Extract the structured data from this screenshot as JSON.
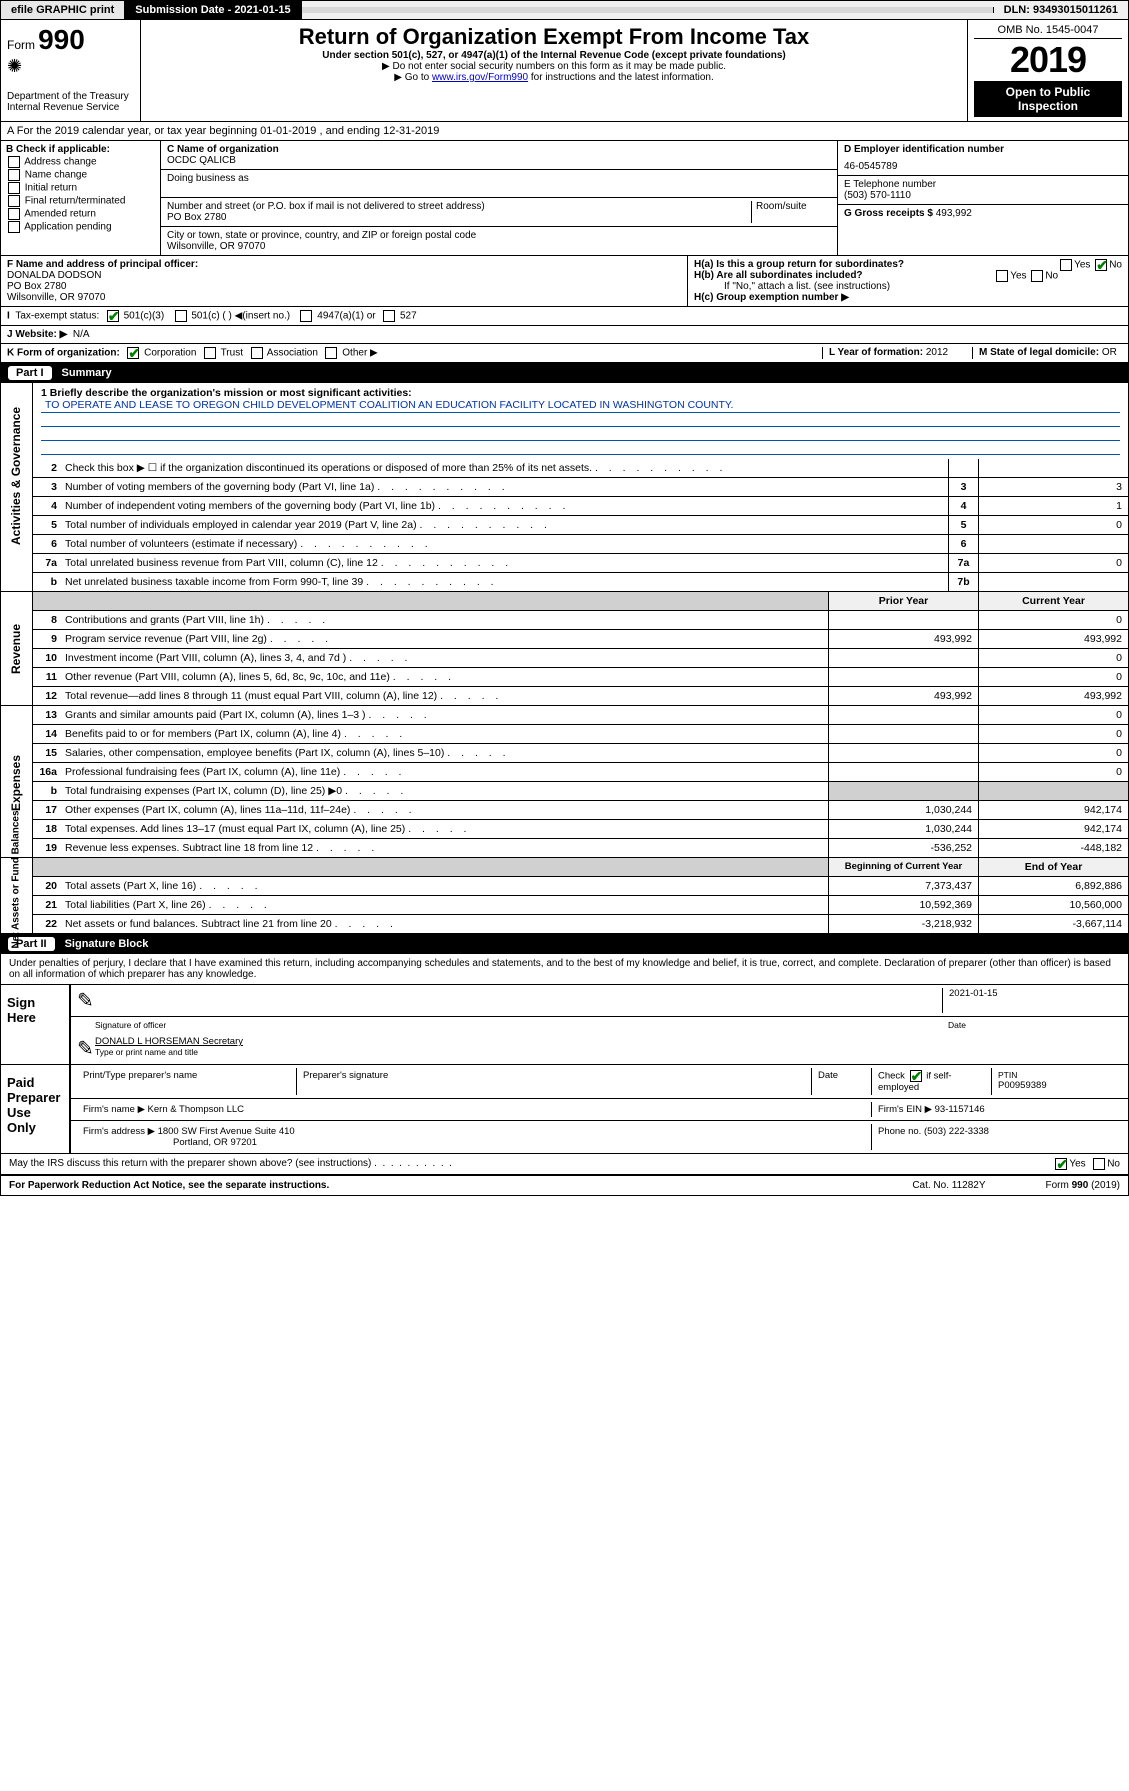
{
  "topbar": {
    "efile": "efile GRAPHIC print",
    "subdate_label": "Submission Date - 2021-01-15",
    "dln": "DLN: 93493015011261"
  },
  "header": {
    "form_prefix": "Form",
    "form_num": "990",
    "title": "Return of Organization Exempt From Income Tax",
    "sub1": "Under section 501(c), 527, or 4947(a)(1) of the Internal Revenue Code (except private foundations)",
    "sub2": "▶ Do not enter social security numbers on this form as it may be made public.",
    "sub3_pre": "▶ Go to ",
    "sub3_link": "www.irs.gov/Form990",
    "sub3_post": " for instructions and the latest information.",
    "dept": "Department of the Treasury\nInternal Revenue Service",
    "omb": "OMB No. 1545-0047",
    "year": "2019",
    "inspection": "Open to Public Inspection"
  },
  "line_a": "A For the 2019 calendar year, or tax year beginning 01-01-2019    , and ending 12-31-2019",
  "col_b": {
    "header": "B Check if applicable:",
    "opts": [
      "Address change",
      "Name change",
      "Initial return",
      "Final return/terminated",
      "Amended return",
      "Application pending"
    ]
  },
  "col_c": {
    "name_label": "C Name of organization",
    "name": "OCDC QALICB",
    "dba_label": "Doing business as",
    "addr_label": "Number and street (or P.O. box if mail is not delivered to street address)",
    "room_label": "Room/suite",
    "addr": "PO Box 2780",
    "city_label": "City or town, state or province, country, and ZIP or foreign postal code",
    "city": "Wilsonville, OR  97070"
  },
  "col_de": {
    "ein_label": "D Employer identification number",
    "ein": "46-0545789",
    "phone_label": "E Telephone number",
    "phone": "(503) 570-1110",
    "gross_label": "G Gross receipts $ ",
    "gross": "493,992"
  },
  "row_f": {
    "label": "F  Name and address of principal officer:",
    "name": "DONALDA DODSON",
    "addr1": "PO Box 2780",
    "addr2": "Wilsonville, OR  97070"
  },
  "row_h": {
    "ha": "H(a)  Is this a group return for subordinates?",
    "hb": "H(b)  Are all subordinates included?",
    "hb_note": "If \"No,\" attach a list. (see instructions)",
    "hc": "H(c)  Group exemption number ▶"
  },
  "row_i": {
    "label": "Tax-exempt status:",
    "o1": "501(c)(3)",
    "o2": "501(c) (   ) ◀(insert no.)",
    "o3": "4947(a)(1) or",
    "o4": "527"
  },
  "row_j": {
    "label": "J  Website: ▶",
    "val": "N/A"
  },
  "row_k": {
    "label": "K Form of organization:",
    "o1": "Corporation",
    "o2": "Trust",
    "o3": "Association",
    "o4": "Other ▶"
  },
  "row_l": {
    "label": "L Year of formation: ",
    "val": "2012"
  },
  "row_m": {
    "label": "M State of legal domicile: ",
    "val": "OR"
  },
  "part1": {
    "num": "Part I",
    "title": "Summary",
    "sidetabs": [
      "Activities & Governance",
      "Revenue",
      "Expenses",
      "Net Assets or Fund Balances"
    ],
    "q1_label": "1  Briefly describe the organization's mission or most significant activities:",
    "q1_text": "TO OPERATE AND LEASE TO OREGON CHILD DEVELOPMENT COALITION AN EDUCATION FACILITY LOCATED IN WASHINGTON COUNTY.",
    "rows_gov": [
      {
        "n": "2",
        "d": "Check this box ▶ ☐  if the organization discontinued its operations or disposed of more than 25% of its net assets.",
        "box": "",
        "v": ""
      },
      {
        "n": "3",
        "d": "Number of voting members of the governing body (Part VI, line 1a)",
        "box": "3",
        "v": "3"
      },
      {
        "n": "4",
        "d": "Number of independent voting members of the governing body (Part VI, line 1b)",
        "box": "4",
        "v": "1"
      },
      {
        "n": "5",
        "d": "Total number of individuals employed in calendar year 2019 (Part V, line 2a)",
        "box": "5",
        "v": "0"
      },
      {
        "n": "6",
        "d": "Total number of volunteers (estimate if necessary)",
        "box": "6",
        "v": ""
      },
      {
        "n": "7a",
        "d": "Total unrelated business revenue from Part VIII, column (C), line 12",
        "box": "7a",
        "v": "0"
      },
      {
        "n": "b",
        "d": "Net unrelated business taxable income from Form 990-T, line 39",
        "box": "7b",
        "v": ""
      }
    ],
    "hdr_prior": "Prior Year",
    "hdr_curr": "Current Year",
    "rows_rev": [
      {
        "n": "8",
        "d": "Contributions and grants (Part VIII, line 1h)",
        "p": "",
        "c": "0"
      },
      {
        "n": "9",
        "d": "Program service revenue (Part VIII, line 2g)",
        "p": "493,992",
        "c": "493,992"
      },
      {
        "n": "10",
        "d": "Investment income (Part VIII, column (A), lines 3, 4, and 7d )",
        "p": "",
        "c": "0"
      },
      {
        "n": "11",
        "d": "Other revenue (Part VIII, column (A), lines 5, 6d, 8c, 9c, 10c, and 11e)",
        "p": "",
        "c": "0"
      },
      {
        "n": "12",
        "d": "Total revenue—add lines 8 through 11 (must equal Part VIII, column (A), line 12)",
        "p": "493,992",
        "c": "493,992"
      }
    ],
    "rows_exp": [
      {
        "n": "13",
        "d": "Grants and similar amounts paid (Part IX, column (A), lines 1–3 )",
        "p": "",
        "c": "0"
      },
      {
        "n": "14",
        "d": "Benefits paid to or for members (Part IX, column (A), line 4)",
        "p": "",
        "c": "0"
      },
      {
        "n": "15",
        "d": "Salaries, other compensation, employee benefits (Part IX, column (A), lines 5–10)",
        "p": "",
        "c": "0"
      },
      {
        "n": "16a",
        "d": "Professional fundraising fees (Part IX, column (A), line 11e)",
        "p": "",
        "c": "0"
      },
      {
        "n": "b",
        "d": "Total fundraising expenses (Part IX, column (D), line 25) ▶0",
        "p": "gray",
        "c": "gray"
      },
      {
        "n": "17",
        "d": "Other expenses (Part IX, column (A), lines 11a–11d, 11f–24e)",
        "p": "1,030,244",
        "c": "942,174"
      },
      {
        "n": "18",
        "d": "Total expenses. Add lines 13–17 (must equal Part IX, column (A), line 25)",
        "p": "1,030,244",
        "c": "942,174"
      },
      {
        "n": "19",
        "d": "Revenue less expenses. Subtract line 18 from line 12",
        "p": "-536,252",
        "c": "-448,182"
      }
    ],
    "hdr_beg": "Beginning of Current Year",
    "hdr_end": "End of Year",
    "rows_net": [
      {
        "n": "20",
        "d": "Total assets (Part X, line 16)",
        "p": "7,373,437",
        "c": "6,892,886"
      },
      {
        "n": "21",
        "d": "Total liabilities (Part X, line 26)",
        "p": "10,592,369",
        "c": "10,560,000"
      },
      {
        "n": "22",
        "d": "Net assets or fund balances. Subtract line 21 from line 20",
        "p": "-3,218,932",
        "c": "-3,667,114"
      }
    ]
  },
  "part2": {
    "num": "Part II",
    "title": "Signature Block",
    "intro": "Under penalties of perjury, I declare that I have examined this return, including accompanying schedules and statements, and to the best of my knowledge and belief, it is true, correct, and complete. Declaration of preparer (other than officer) is based on all information of which preparer has any knowledge.",
    "sign_here": "Sign Here",
    "sig_date": "2021-01-15",
    "sig_label1": "Signature of officer",
    "sig_label2": "Date",
    "officer": "DONALD L HORSEMAN  Secretary",
    "officer_label": "Type or print name and title",
    "paid": "Paid Preparer Use Only",
    "prep_labels": [
      "Print/Type preparer's name",
      "Preparer's signature",
      "Date"
    ],
    "check_self": "Check ☑ if self-employed",
    "ptin_label": "PTIN",
    "ptin": "P00959389",
    "firm_name_label": "Firm's name    ▶",
    "firm_name": "Kern & Thompson LLC",
    "firm_ein_label": "Firm's EIN ▶",
    "firm_ein": "93-1157146",
    "firm_addr_label": "Firm's address ▶",
    "firm_addr": "1800 SW First Avenue Suite 410",
    "firm_city": "Portland, OR  97201",
    "firm_phone_label": "Phone no.",
    "firm_phone": "(503) 222-3338",
    "discuss": "May the IRS discuss this return with the preparer shown above? (see instructions)"
  },
  "footer": {
    "left": "For Paperwork Reduction Act Notice, see the separate instructions.",
    "mid": "Cat. No. 11282Y",
    "right": "Form 990 (2019)"
  }
}
